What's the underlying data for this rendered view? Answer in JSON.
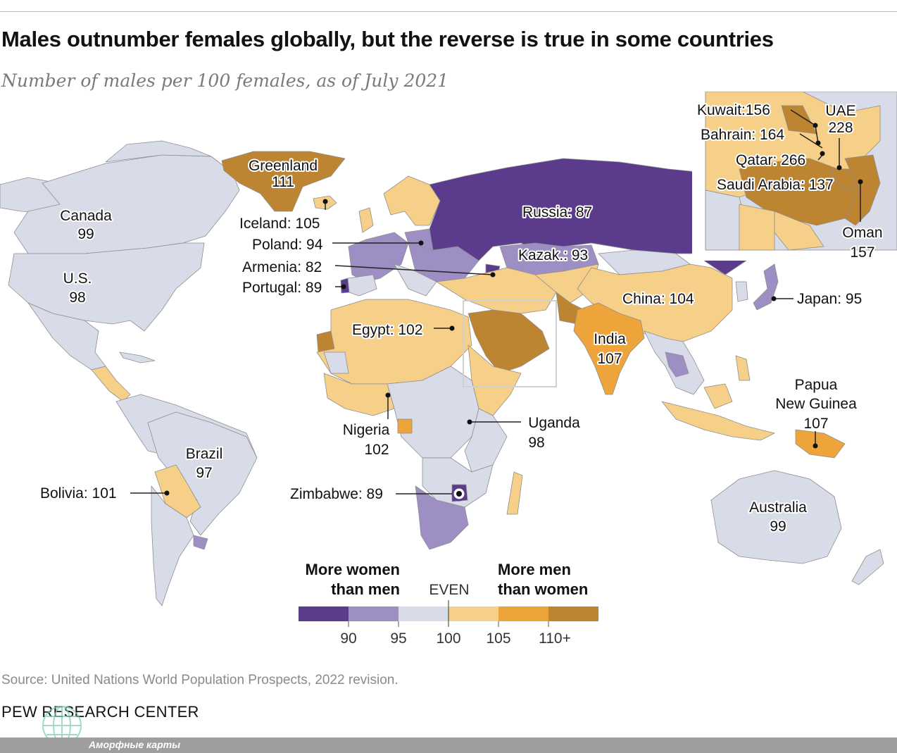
{
  "title": "Males outnumber females globally, but the reverse is true in some countries",
  "subtitle": "Number of males per 100 females, as of July 2021",
  "colors": {
    "lt90": "#5b3b8c",
    "90to95": "#9d8fc3",
    "95to100": "#d8dbe8",
    "100to105": "#f6cf88",
    "105to110": "#eda43a",
    "110plus": "#bd8432",
    "water": "#ffffff",
    "border": "#8f8f8f"
  },
  "labels": {
    "greenland": "Greenland",
    "greenland_val": "111",
    "canada": "Canada",
    "canada_val": "99",
    "us": "U.S.",
    "us_val": "98",
    "iceland": "Iceland: 105",
    "poland": "Poland: 94",
    "armenia": "Armenia: 82",
    "portugal": "Portugal: 89",
    "russia": "Russia: 87",
    "kazak": "Kazak.: 93",
    "china": "China: 104",
    "japan": "Japan: 95",
    "egypt": "Egypt: 102",
    "india": "India",
    "india_val": "107",
    "nigeria": "Nigeria",
    "nigeria_val": "102",
    "uganda": "Uganda",
    "uganda_val": "98",
    "png1": "Papua",
    "png2": "New Guinea",
    "png_val": "107",
    "brazil": "Brazil",
    "brazil_val": "97",
    "bolivia": "Bolivia: 101",
    "zimbabwe": "Zimbabwe: 89",
    "australia": "Australia",
    "australia_val": "99",
    "kuwait": "Kuwait:156",
    "bahrain": "Bahrain: 164",
    "qatar": "Qatar: 266",
    "saudi": "Saudi Arabia: 137",
    "uae": "UAE",
    "uae_val": "228",
    "oman": "Oman",
    "oman_val": "157"
  },
  "legend": {
    "left_title_1": "More women",
    "left_title_2": "than men",
    "even": "EVEN",
    "right_title_1": "More men",
    "right_title_2": "than women",
    "ticks": [
      "90",
      "95",
      "100",
      "105",
      "110+"
    ]
  },
  "source": "Source: United Nations World Population Prospects, 2022 revision.",
  "brand": "PEW RESEARCH CENTER",
  "watermark": "Аморфные карты"
}
